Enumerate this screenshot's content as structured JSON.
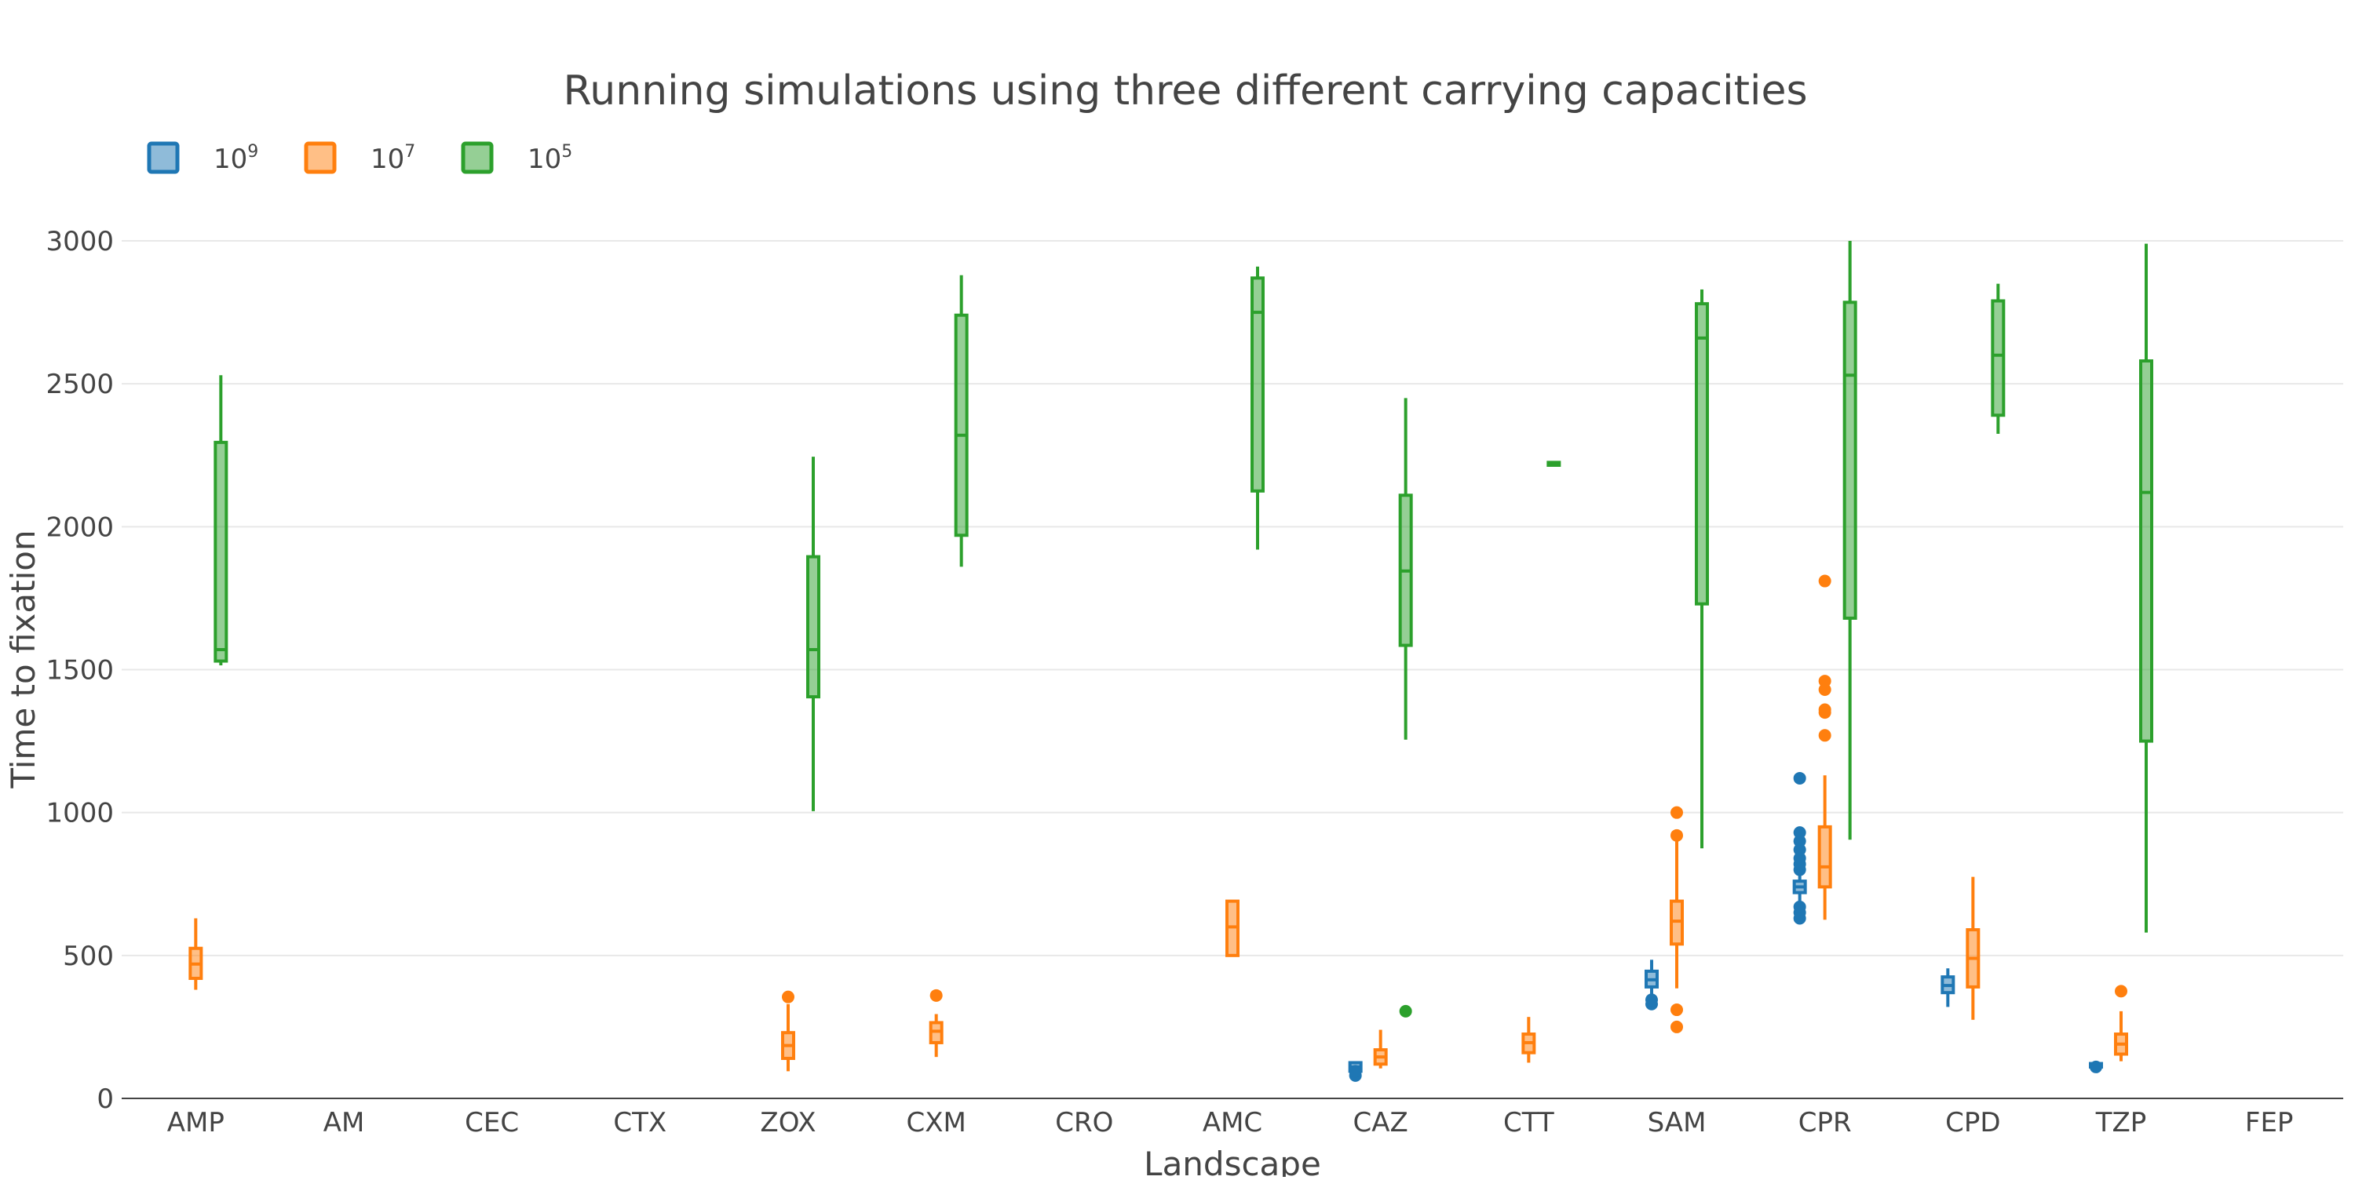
{
  "chart_data": {
    "type": "box",
    "title": "Running simulations using three different carrying capacities",
    "xlabel": "Landscape",
    "ylabel": "Time to fixation",
    "categories": [
      "AMP",
      "AM",
      "CEC",
      "CTX",
      "ZOX",
      "CXM",
      "CRO",
      "AMC",
      "CAZ",
      "CTT",
      "SAM",
      "CPR",
      "CPD",
      "TZP",
      "FEP"
    ],
    "ylim": [
      0,
      3000
    ],
    "yticks": [
      0,
      500,
      1000,
      1500,
      2000,
      2500,
      3000
    ],
    "grid": true,
    "legend_position": "top-left",
    "series": [
      {
        "name": "10^9",
        "name_base": "10",
        "name_exp": "9",
        "color": "#1f77b4",
        "boxes": [
          {
            "category": "CAZ",
            "min": 80,
            "q1": 95,
            "median": 110,
            "q3": 125,
            "max": 130,
            "outliers": [
              80,
              95
            ]
          },
          {
            "category": "SAM",
            "min": 330,
            "q1": 390,
            "median": 415,
            "q3": 445,
            "max": 485,
            "outliers": [
              330,
              345
            ]
          },
          {
            "category": "CPR",
            "min": 630,
            "q1": 720,
            "median": 740,
            "q3": 760,
            "max": 780,
            "outliers": [
              630,
              650,
              670,
              800,
              820,
              840,
              870,
              900,
              930,
              1120
            ]
          },
          {
            "category": "CPD",
            "min": 320,
            "q1": 370,
            "median": 395,
            "q3": 425,
            "max": 455,
            "outliers": []
          },
          {
            "category": "TZP",
            "min": 105,
            "q1": 110,
            "median": 115,
            "q3": 122,
            "max": 128,
            "outliers": [
              110
            ]
          }
        ]
      },
      {
        "name": "10^7",
        "name_base": "10",
        "name_exp": "7",
        "color": "#ff7f0e",
        "boxes": [
          {
            "category": "AMP",
            "min": 380,
            "q1": 420,
            "median": 470,
            "q3": 525,
            "max": 630,
            "outliers": []
          },
          {
            "category": "ZOX",
            "min": 95,
            "q1": 140,
            "median": 185,
            "q3": 230,
            "max": 330,
            "outliers": [
              355
            ]
          },
          {
            "category": "CXM",
            "min": 145,
            "q1": 195,
            "median": 235,
            "q3": 265,
            "max": 295,
            "outliers": [
              360
            ]
          },
          {
            "category": "AMC",
            "min": 500,
            "q1": 500,
            "median": 600,
            "q3": 690,
            "max": 690,
            "outliers": []
          },
          {
            "category": "CAZ",
            "min": 105,
            "q1": 120,
            "median": 145,
            "q3": 170,
            "max": 240,
            "outliers": []
          },
          {
            "category": "CTT",
            "min": 125,
            "q1": 160,
            "median": 195,
            "q3": 225,
            "max": 285,
            "outliers": []
          },
          {
            "category": "SAM",
            "min": 385,
            "q1": 540,
            "median": 620,
            "q3": 690,
            "max": 900,
            "outliers": [
              250,
              310,
              920,
              1000
            ]
          },
          {
            "category": "CPR",
            "min": 625,
            "q1": 740,
            "median": 810,
            "q3": 950,
            "max": 1130,
            "outliers": [
              1270,
              1350,
              1360,
              1430,
              1460,
              1810
            ]
          },
          {
            "category": "CPD",
            "min": 275,
            "q1": 390,
            "median": 490,
            "q3": 590,
            "max": 775,
            "outliers": []
          },
          {
            "category": "TZP",
            "min": 130,
            "q1": 155,
            "median": 190,
            "q3": 225,
            "max": 305,
            "outliers": [
              375
            ]
          }
        ]
      },
      {
        "name": "10^5",
        "name_base": "10",
        "name_exp": "5",
        "color": "#2ca02c",
        "boxes": [
          {
            "category": "AMP",
            "min": 1515,
            "q1": 1530,
            "median": 1570,
            "q3": 2295,
            "max": 2530,
            "outliers": []
          },
          {
            "category": "ZOX",
            "min": 1005,
            "q1": 1405,
            "median": 1570,
            "q3": 1895,
            "max": 2245,
            "outliers": []
          },
          {
            "category": "CXM",
            "min": 1860,
            "q1": 1970,
            "median": 2320,
            "q3": 2740,
            "max": 2880,
            "outliers": []
          },
          {
            "category": "AMC",
            "min": 1920,
            "q1": 2125,
            "median": 2750,
            "q3": 2870,
            "max": 2910,
            "outliers": []
          },
          {
            "category": "CAZ",
            "min": 1255,
            "q1": 1585,
            "median": 1845,
            "q3": 2110,
            "max": 2450,
            "outliers": [
              305
            ]
          },
          {
            "category": "CTT",
            "min": 2210,
            "q1": 2215,
            "median": 2220,
            "q3": 2225,
            "max": 2230,
            "outliers": []
          },
          {
            "category": "SAM",
            "min": 875,
            "q1": 1730,
            "median": 2660,
            "q3": 2780,
            "max": 2830,
            "outliers": []
          },
          {
            "category": "CPR",
            "min": 905,
            "q1": 1680,
            "median": 2530,
            "q3": 2785,
            "max": 3000,
            "outliers": []
          },
          {
            "category": "CPD",
            "min": 2325,
            "q1": 2390,
            "median": 2600,
            "q3": 2790,
            "max": 2850,
            "outliers": []
          },
          {
            "category": "TZP",
            "min": 580,
            "q1": 1250,
            "median": 2120,
            "q3": 2580,
            "max": 2990,
            "outliers": []
          }
        ]
      }
    ]
  }
}
